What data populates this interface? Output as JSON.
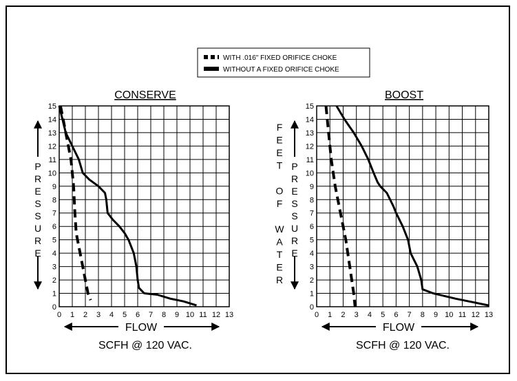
{
  "legend": {
    "items": [
      {
        "label": "WITH .016\" FIXED ORIFICE CHOKE",
        "style": "dashed"
      },
      {
        "label": "WITHOUT A FIXED ORIFICE CHOKE",
        "style": "solid"
      }
    ]
  },
  "left_vertical_label": [
    "P",
    "R",
    "E",
    "S",
    "S",
    "U",
    "R",
    "E"
  ],
  "right_vertical_label_col1": [
    "F",
    "E",
    "E",
    "T",
    "",
    "O",
    "F",
    "",
    "W",
    "A",
    "T",
    "E",
    "R"
  ],
  "right_vertical_label_col2": [
    "P",
    "R",
    "E",
    "S",
    "S",
    "U",
    "R",
    "E"
  ],
  "chart_data": [
    {
      "type": "line",
      "title": "CONSERVE",
      "xlabel": "FLOW",
      "subtitle": "SCFH @ 120 VAC.",
      "xlim": [
        0,
        13
      ],
      "ylim": [
        0,
        15
      ],
      "xticks": [
        "0",
        "1",
        "2",
        "3",
        "4",
        "5",
        "6",
        "7",
        "8",
        "9",
        "10",
        "11",
        "12",
        "13"
      ],
      "yticks": [
        "0",
        "1",
        "2",
        "3",
        "4",
        "5",
        "6",
        "7",
        "8",
        "9",
        "10",
        "11",
        "12",
        "13",
        "14",
        "15"
      ],
      "grid": true,
      "series": [
        {
          "name": "WITH .016\" FIXED ORIFICE CHOKE",
          "style": "dashed",
          "points": [
            [
              0.1,
              15
            ],
            [
              0.5,
              13
            ],
            [
              0.9,
              11
            ],
            [
              1.1,
              9
            ],
            [
              1.2,
              7
            ],
            [
              1.3,
              5.5
            ],
            [
              1.6,
              4
            ],
            [
              2.0,
              2
            ],
            [
              2.2,
              1
            ],
            [
              2.4,
              0.5
            ]
          ]
        },
        {
          "name": "WITHOUT A FIXED ORIFICE CHOKE",
          "style": "solid",
          "points": [
            [
              0,
              15
            ],
            [
              0.5,
              13
            ],
            [
              1.0,
              12
            ],
            [
              1.5,
              11
            ],
            [
              1.8,
              10
            ],
            [
              2.3,
              9.5
            ],
            [
              3.0,
              9
            ],
            [
              3.5,
              8.5
            ],
            [
              3.6,
              8
            ],
            [
              3.7,
              7
            ],
            [
              4.1,
              6.5
            ],
            [
              4.6,
              6
            ],
            [
              5.0,
              5.5
            ],
            [
              5.3,
              5
            ],
            [
              5.7,
              4
            ],
            [
              5.9,
              3
            ],
            [
              6.0,
              2
            ],
            [
              6.1,
              1.4
            ],
            [
              6.5,
              1
            ],
            [
              7.5,
              0.9
            ],
            [
              8.5,
              0.6
            ],
            [
              9.5,
              0.4
            ],
            [
              10.5,
              0.1
            ]
          ]
        }
      ]
    },
    {
      "type": "line",
      "title": "BOOST",
      "xlabel": "FLOW",
      "subtitle": "SCFH @ 120 VAC.",
      "xlim": [
        0,
        13
      ],
      "ylim": [
        0,
        15
      ],
      "xticks": [
        "0",
        "1",
        "2",
        "3",
        "4",
        "5",
        "6",
        "7",
        "8",
        "9",
        "10",
        "11",
        "12",
        "13"
      ],
      "yticks": [
        "0",
        "1",
        "2",
        "3",
        "4",
        "5",
        "6",
        "7",
        "8",
        "9",
        "10",
        "11",
        "12",
        "13",
        "14",
        "15"
      ],
      "grid": true,
      "series": [
        {
          "name": "WITH .016\" FIXED ORIFICE CHOKE",
          "style": "dashed",
          "points": [
            [
              0.7,
              15
            ],
            [
              0.9,
              13
            ],
            [
              1.1,
              11
            ],
            [
              1.4,
              9
            ],
            [
              1.8,
              7
            ],
            [
              2.2,
              5
            ],
            [
              2.5,
              3
            ],
            [
              2.8,
              1
            ],
            [
              2.9,
              0
            ]
          ]
        },
        {
          "name": "WITHOUT A FIXED ORIFICE CHOKE",
          "style": "solid",
          "points": [
            [
              1.5,
              15
            ],
            [
              2.1,
              14
            ],
            [
              2.8,
              13
            ],
            [
              3.4,
              12
            ],
            [
              3.9,
              11
            ],
            [
              4.3,
              10
            ],
            [
              4.6,
              9.3
            ],
            [
              4.8,
              9
            ],
            [
              5.3,
              8.5
            ],
            [
              5.8,
              7.5
            ],
            [
              6.0,
              7
            ],
            [
              6.5,
              6
            ],
            [
              6.9,
              5
            ],
            [
              7.1,
              4
            ],
            [
              7.6,
              3
            ],
            [
              7.9,
              2
            ],
            [
              8.0,
              1.3
            ],
            [
              8.8,
              1
            ],
            [
              10.5,
              0.6
            ],
            [
              12.0,
              0.3
            ],
            [
              13,
              0.1
            ]
          ]
        }
      ]
    }
  ]
}
